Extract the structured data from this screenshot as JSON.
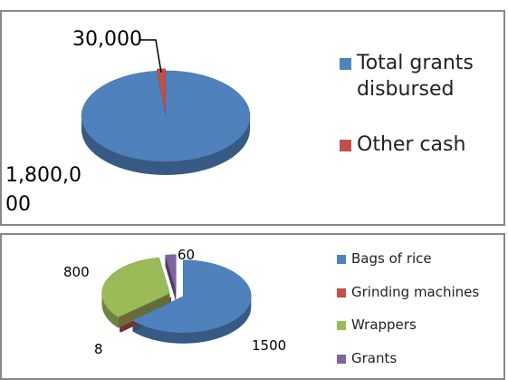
{
  "chart_data": [
    {
      "type": "pie",
      "categories": [
        "Total grants disbursed",
        "Other cash"
      ],
      "values": [
        1800000,
        30000
      ],
      "value_labels": [
        "1,800,000",
        "30,000"
      ],
      "colors": [
        "#4f81bd",
        "#c0504d"
      ],
      "legend": "right"
    },
    {
      "type": "pie",
      "categories": [
        "Bags of rice",
        "Grinding machines",
        "Wrappers",
        "Grants"
      ],
      "values": [
        1500,
        8,
        800,
        60
      ],
      "colors": [
        "#4f81bd",
        "#c0504d",
        "#9bbb59",
        "#8064a2"
      ],
      "legend": "right",
      "exploded": true
    }
  ]
}
